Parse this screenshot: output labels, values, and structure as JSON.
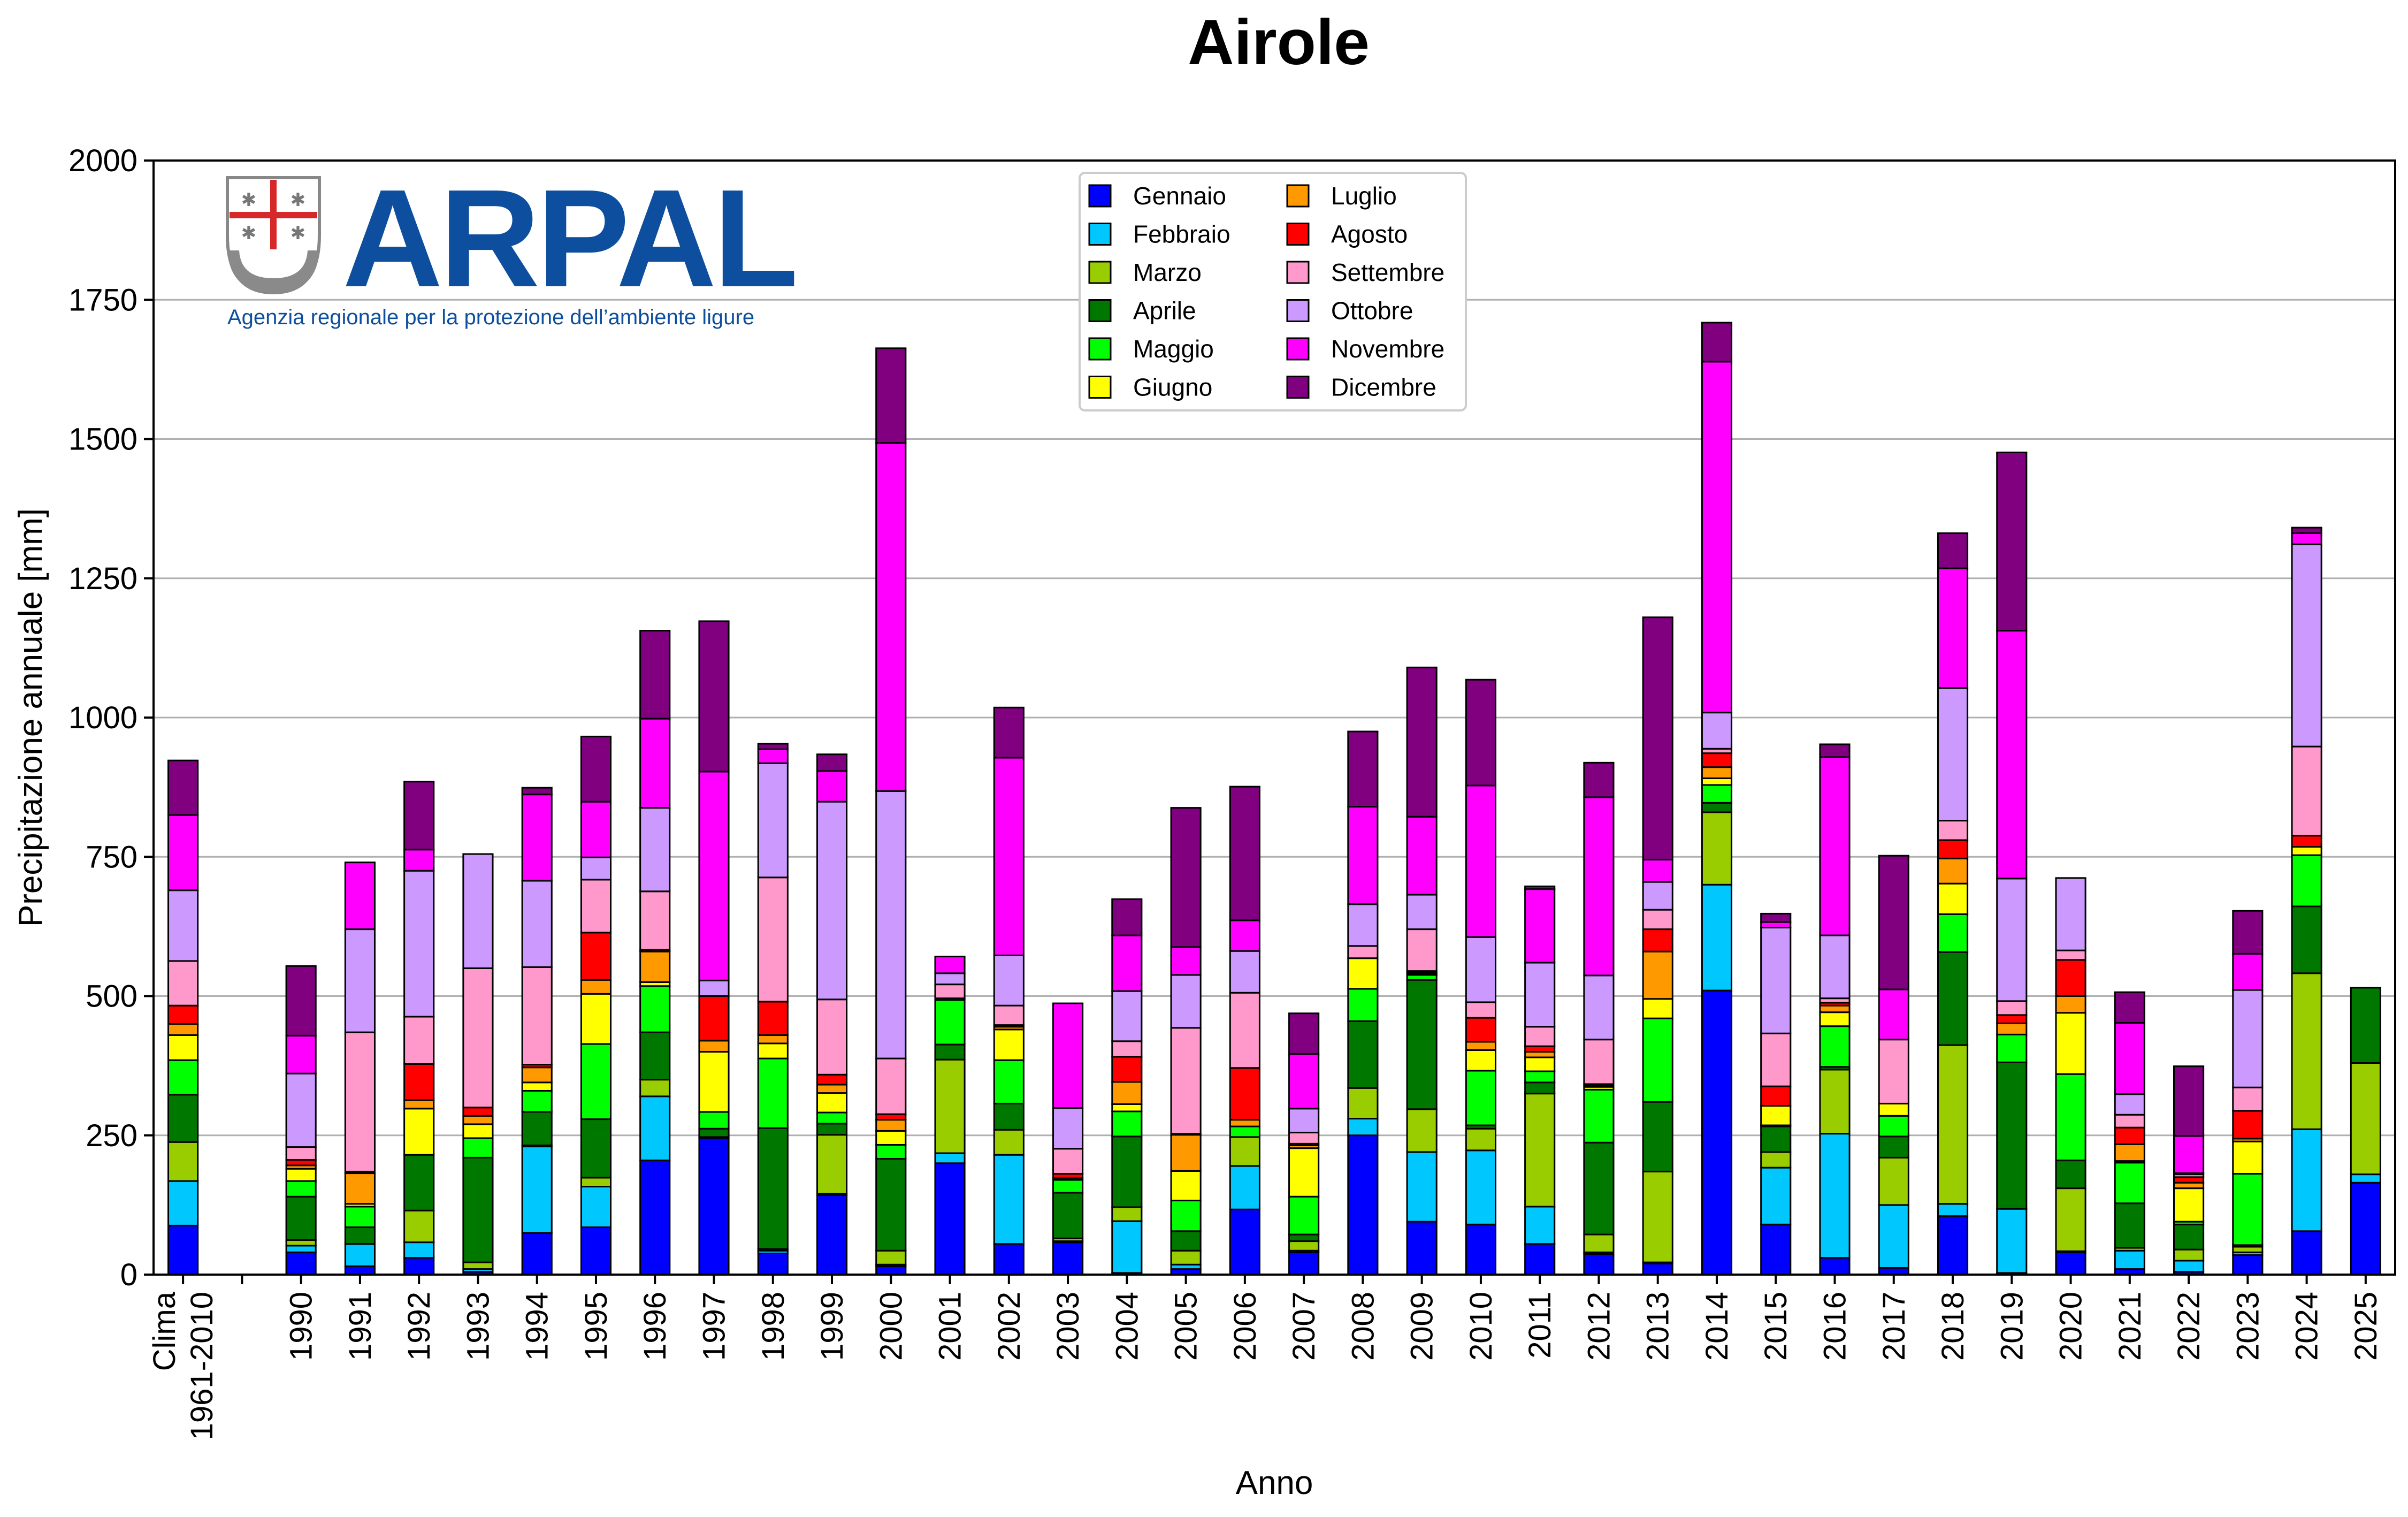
{
  "logo": {
    "name": "ARPAL",
    "tagline": "Agenzia regionale per la protezione dell’ambiente ligure"
  },
  "chart_data": {
    "type": "bar",
    "stacked": true,
    "title": "Airole",
    "xlabel": "Anno",
    "ylabel": "Precipitazione annuale [mm]",
    "ylim": [
      0,
      2000
    ],
    "yticks": [
      0,
      250,
      500,
      750,
      1000,
      1250,
      1500,
      1750,
      2000
    ],
    "grid": "horizontal",
    "legend_position": "top-center",
    "categories": [
      "Clima\n1961-2010",
      "",
      "1990",
      "1991",
      "1992",
      "1993",
      "1994",
      "1995",
      "1996",
      "1997",
      "1998",
      "1999",
      "2000",
      "2001",
      "2002",
      "2003",
      "2004",
      "2005",
      "2006",
      "2007",
      "2008",
      "2009",
      "2010",
      "2011",
      "2012",
      "2013",
      "2014",
      "2015",
      "2016",
      "2017",
      "2018",
      "2019",
      "2020",
      "2021",
      "2022",
      "2023",
      "2024",
      "2025"
    ],
    "series": [
      {
        "name": "Gennaio",
        "color": "#0000ff",
        "values": [
          88,
          0,
          40,
          15,
          30,
          5,
          75,
          85,
          205,
          245,
          38,
          143,
          15,
          200,
          55,
          58,
          3,
          10,
          117,
          40,
          250,
          95,
          90,
          55,
          37,
          20,
          510,
          90,
          30,
          12,
          105,
          3,
          40,
          10,
          5,
          35,
          78,
          165
        ]
      },
      {
        "name": "Febbraio",
        "color": "#00c8ff",
        "values": [
          80,
          0,
          12,
          40,
          28,
          5,
          155,
          73,
          115,
          0,
          5,
          2,
          3,
          18,
          160,
          2,
          93,
          8,
          78,
          3,
          30,
          125,
          133,
          67,
          3,
          2,
          190,
          102,
          223,
          113,
          22,
          115,
          2,
          33,
          20,
          5,
          183,
          15
        ]
      },
      {
        "name": "Marzo",
        "color": "#9acd00",
        "values": [
          70,
          0,
          10,
          0,
          57,
          12,
          2,
          16,
          30,
          2,
          3,
          106,
          25,
          168,
          45,
          5,
          25,
          25,
          52,
          17,
          55,
          77,
          39,
          203,
          32,
          163,
          130,
          28,
          115,
          85,
          285,
          0,
          113,
          5,
          20,
          10,
          280,
          200
        ]
      },
      {
        "name": "Aprile",
        "color": "#007800",
        "values": [
          85,
          0,
          78,
          30,
          100,
          188,
          60,
          105,
          85,
          15,
          217,
          20,
          165,
          27,
          47,
          82,
          127,
          35,
          0,
          12,
          120,
          232,
          6,
          20,
          165,
          125,
          17,
          46,
          5,
          38,
          167,
          263,
          50,
          80,
          45,
          3,
          120,
          135
        ]
      },
      {
        "name": "Maggio",
        "color": "#00ff00",
        "values": [
          62,
          0,
          28,
          37,
          0,
          35,
          38,
          135,
          83,
          30,
          125,
          20,
          25,
          80,
          78,
          23,
          45,
          55,
          19,
          68,
          58,
          9,
          98,
          20,
          95,
          150,
          32,
          2,
          73,
          37,
          68,
          50,
          155,
          73,
          5,
          128,
          92,
          0
        ]
      },
      {
        "name": "Giugno",
        "color": "#ffff00",
        "values": [
          45,
          0,
          22,
          5,
          83,
          25,
          15,
          90,
          7,
          108,
          27,
          35,
          25,
          3,
          55,
          0,
          13,
          53,
          0,
          87,
          55,
          2,
          37,
          25,
          5,
          35,
          12,
          35,
          25,
          22,
          55,
          0,
          110,
          3,
          60,
          58,
          15,
          0
        ]
      },
      {
        "name": "Luglio",
        "color": "#ff9900",
        "values": [
          20,
          0,
          6,
          55,
          15,
          15,
          27,
          25,
          55,
          20,
          15,
          15,
          20,
          0,
          5,
          3,
          40,
          65,
          12,
          5,
          0,
          2,
          15,
          10,
          3,
          85,
          20,
          0,
          12,
          0,
          45,
          20,
          30,
          30,
          10,
          5,
          0,
          0
        ]
      },
      {
        "name": "Agosto",
        "color": "#ff0000",
        "values": [
          33,
          0,
          10,
          3,
          65,
          15,
          5,
          85,
          3,
          80,
          60,
          18,
          10,
          0,
          3,
          8,
          45,
          2,
          93,
          3,
          0,
          3,
          43,
          10,
          2,
          40,
          25,
          35,
          5,
          0,
          33,
          15,
          65,
          30,
          10,
          50,
          20,
          0
        ]
      },
      {
        "name": "Settembre",
        "color": "#ff99cc",
        "values": [
          80,
          0,
          23,
          250,
          85,
          250,
          175,
          95,
          105,
          0,
          223,
          135,
          100,
          25,
          35,
          45,
          28,
          190,
          135,
          20,
          22,
          75,
          28,
          35,
          80,
          35,
          8,
          95,
          8,
          115,
          35,
          25,
          17,
          23,
          5,
          42,
          160,
          0
        ]
      },
      {
        "name": "Ottobre",
        "color": "#cc99ff",
        "values": [
          127,
          0,
          132,
          185,
          262,
          205,
          155,
          40,
          150,
          28,
          205,
          355,
          480,
          20,
          90,
          73,
          90,
          95,
          75,
          43,
          75,
          62,
          117,
          115,
          115,
          50,
          65,
          190,
          113,
          0,
          238,
          220,
          130,
          37,
          2,
          175,
          363,
          0
        ]
      },
      {
        "name": "Novembre",
        "color": "#ff00ff",
        "values": [
          135,
          0,
          68,
          120,
          38,
          0,
          155,
          100,
          160,
          375,
          25,
          55,
          625,
          30,
          355,
          188,
          100,
          50,
          55,
          98,
          175,
          140,
          272,
          132,
          320,
          40,
          630,
          10,
          320,
          90,
          215,
          445,
          0,
          128,
          67,
          65,
          20,
          0
        ]
      },
      {
        "name": "Dicembre",
        "color": "#800080",
        "values": [
          98,
          0,
          125,
          0,
          122,
          0,
          12,
          117,
          158,
          270,
          10,
          30,
          170,
          0,
          90,
          0,
          65,
          250,
          240,
          73,
          135,
          268,
          190,
          5,
          62,
          435,
          70,
          15,
          23,
          240,
          63,
          320,
          0,
          55,
          125,
          77,
          10,
          0
        ]
      }
    ]
  }
}
